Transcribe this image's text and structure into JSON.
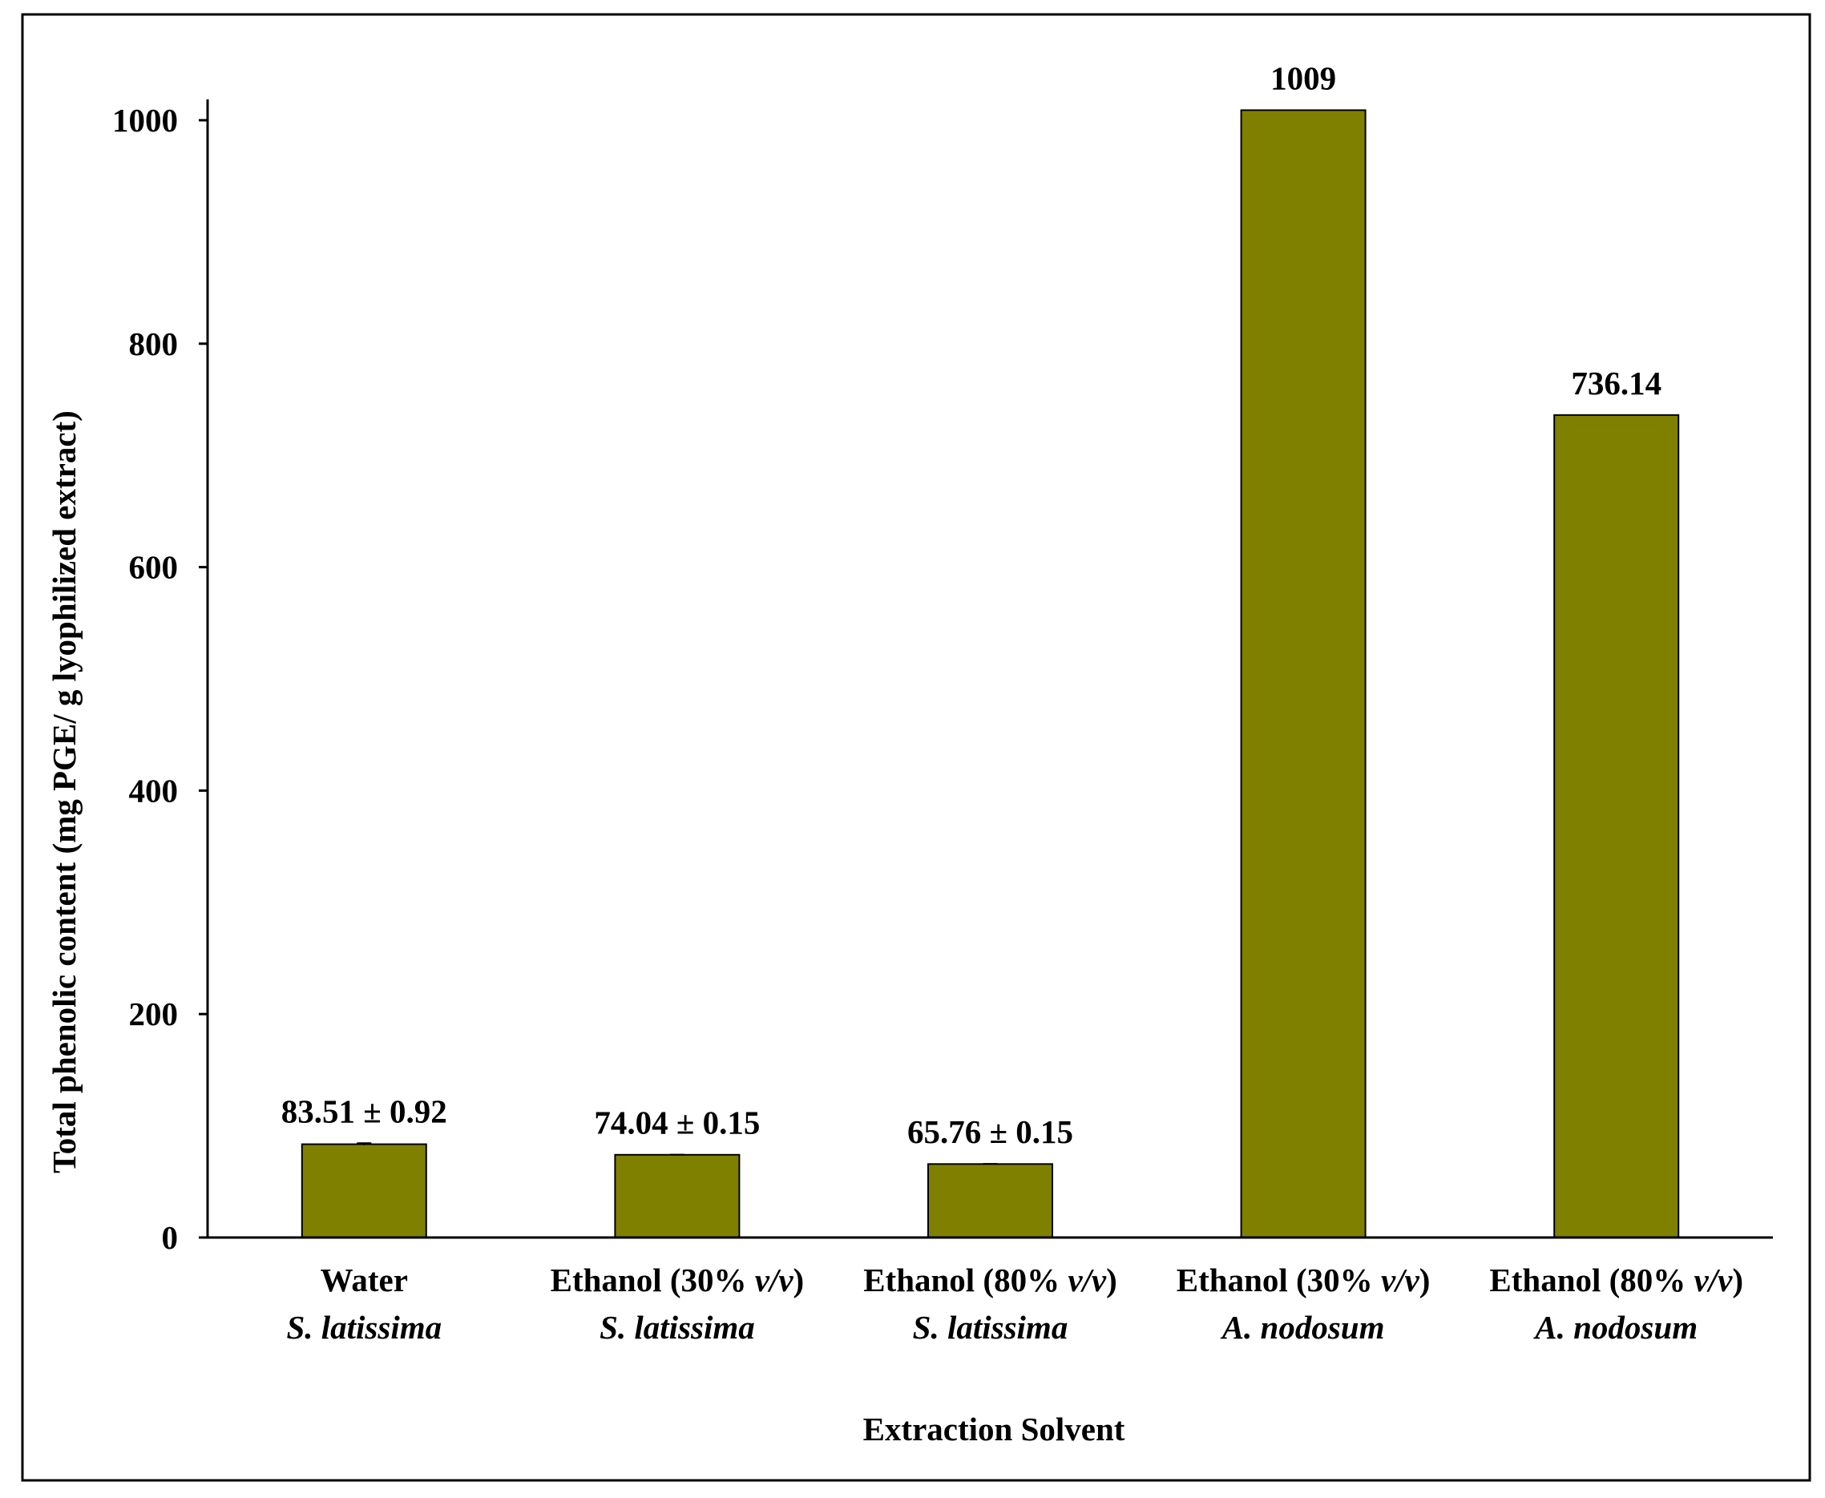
{
  "chart_data": {
    "type": "bar",
    "xlabel": "Extraction Solvent",
    "ylabel": "Total phenolic content (mg PGE/ g lyophilized extract)",
    "ylim": [
      0,
      1000
    ],
    "yticks": [
      0,
      200,
      400,
      600,
      800,
      1000
    ],
    "categories": [
      {
        "line1": "Water",
        "line1_italic_suffix": "",
        "line1_close": "",
        "line2": "S. latissima"
      },
      {
        "line1": "Ethanol (30% ",
        "line1_italic_suffix": "v/v",
        "line1_close": ")",
        "line2": "S. latissima"
      },
      {
        "line1": "Ethanol (80% ",
        "line1_italic_suffix": "v/v",
        "line1_close": ")",
        "line2": "S. latissima"
      },
      {
        "line1": "Ethanol (30% ",
        "line1_italic_suffix": "v/v",
        "line1_close": ")",
        "line2": "A. nodosum"
      },
      {
        "line1": "Ethanol (80% ",
        "line1_italic_suffix": "v/v",
        "line1_close": ")",
        "line2": "A. nodosum"
      }
    ],
    "values": [
      83.51,
      74.04,
      65.76,
      1009,
      736.14
    ],
    "errors": [
      0.92,
      0.15,
      0.15,
      0,
      0
    ],
    "data_labels": [
      "83.51 ± 0.92",
      "74.04 ± 0.15",
      "65.76 ± 0.15",
      "1009",
      "736.14"
    ],
    "bar_color": "#808000",
    "grid": false,
    "legend": "none"
  }
}
